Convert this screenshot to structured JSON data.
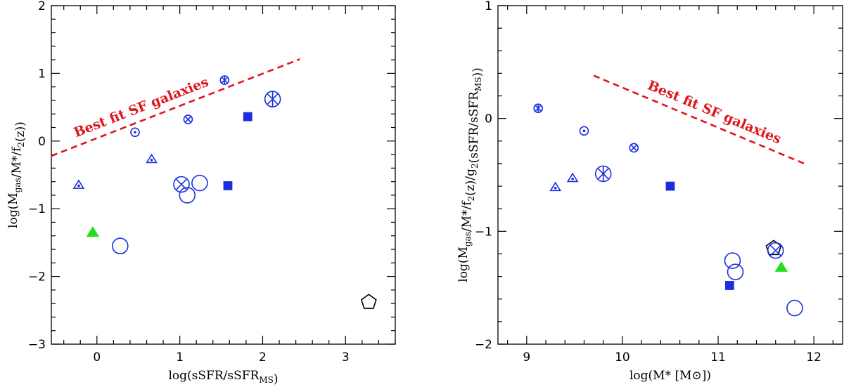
{
  "chart_data": [
    {
      "type": "scatter",
      "xlabel": "log(sSFR/sSFR_MS)",
      "ylabel": "log(M_gas/M*/f2(z))",
      "xlim": [
        -0.55,
        3.6
      ],
      "ylim": [
        -3,
        2
      ],
      "xticks": [
        0,
        1,
        2,
        3
      ],
      "xtick_labels": [
        "0",
        "1",
        "2",
        "3"
      ],
      "yticks": [
        -3,
        -2,
        -1,
        0,
        1,
        2
      ],
      "ytick_labels": [
        "−3",
        "−2",
        "−1",
        "0",
        "1",
        "2"
      ],
      "fit_line": {
        "label": "Best fit SF galaxies",
        "x": [
          -0.55,
          2.45
        ],
        "y": [
          -0.22,
          1.21
        ],
        "color": "#e0141b",
        "style": "dashed"
      },
      "points": [
        {
          "x": -0.22,
          "y": -0.65,
          "marker": "triangle-dot",
          "color": "#1a2ee0",
          "size": "small"
        },
        {
          "x": -0.05,
          "y": -1.35,
          "marker": "triangle-filled",
          "color": "#22e01a",
          "size": "medium"
        },
        {
          "x": 0.28,
          "y": -1.55,
          "marker": "circle",
          "color": "#1a2ee0",
          "size": "large"
        },
        {
          "x": 0.46,
          "y": 0.13,
          "marker": "circle-dot",
          "color": "#1a2ee0",
          "size": "small"
        },
        {
          "x": 0.66,
          "y": -0.27,
          "marker": "triangle-dot",
          "color": "#1a2ee0",
          "size": "small"
        },
        {
          "x": 1.02,
          "y": -0.64,
          "marker": "circle-cross",
          "color": "#1a2ee0",
          "size": "large"
        },
        {
          "x": 1.09,
          "y": -0.8,
          "marker": "circle",
          "color": "#1a2ee0",
          "size": "large"
        },
        {
          "x": 1.1,
          "y": 0.32,
          "marker": "circle-cross",
          "color": "#1a2ee0",
          "size": "small"
        },
        {
          "x": 1.24,
          "y": -0.62,
          "marker": "circle",
          "color": "#1a2ee0",
          "size": "large"
        },
        {
          "x": 1.54,
          "y": 0.9,
          "marker": "circle-asterisk",
          "color": "#1a2ee0",
          "size": "small"
        },
        {
          "x": 1.58,
          "y": -0.66,
          "marker": "square-filled",
          "color": "#1a2ee0",
          "size": "medium"
        },
        {
          "x": 1.82,
          "y": 0.36,
          "marker": "square-filled",
          "color": "#1a2ee0",
          "size": "medium"
        },
        {
          "x": 2.12,
          "y": 0.62,
          "marker": "circle-asterisk",
          "color": "#1a2ee0",
          "size": "large"
        },
        {
          "x": 3.28,
          "y": -2.38,
          "marker": "pentagon",
          "color": "#000000",
          "size": "large"
        }
      ]
    },
    {
      "type": "scatter",
      "xlabel": "log(M* [M⊙])",
      "ylabel": "log(M_gas/M*/f2(z)/g2(sSFR/sSFR_MS))",
      "xlim": [
        8.7,
        12.3
      ],
      "ylim": [
        -2,
        1
      ],
      "xticks": [
        9,
        10,
        11,
        12
      ],
      "xtick_labels": [
        "9",
        "10",
        "11",
        "12"
      ],
      "yticks": [
        -2,
        -1,
        0,
        1
      ],
      "ytick_labels": [
        "−2",
        "−1",
        "0",
        "1"
      ],
      "fit_line": {
        "label": "Best fit SF galaxies",
        "x": [
          9.7,
          11.9
        ],
        "y": [
          0.38,
          -0.4
        ],
        "color": "#e0141b",
        "style": "dashed"
      },
      "points": [
        {
          "x": 9.12,
          "y": 0.09,
          "marker": "circle-asterisk",
          "color": "#1a2ee0",
          "size": "small"
        },
        {
          "x": 9.3,
          "y": -0.61,
          "marker": "triangle-dot",
          "color": "#1a2ee0",
          "size": "small"
        },
        {
          "x": 9.48,
          "y": -0.53,
          "marker": "triangle-dot",
          "color": "#1a2ee0",
          "size": "small"
        },
        {
          "x": 9.6,
          "y": -0.11,
          "marker": "circle-dot",
          "color": "#1a2ee0",
          "size": "small"
        },
        {
          "x": 9.8,
          "y": -0.49,
          "marker": "circle-asterisk",
          "color": "#1a2ee0",
          "size": "large"
        },
        {
          "x": 10.12,
          "y": -0.26,
          "marker": "circle-cross",
          "color": "#1a2ee0",
          "size": "small"
        },
        {
          "x": 10.5,
          "y": -0.6,
          "marker": "square-filled",
          "color": "#1a2ee0",
          "size": "medium"
        },
        {
          "x": 11.12,
          "y": -1.48,
          "marker": "square-filled",
          "color": "#1a2ee0",
          "size": "medium"
        },
        {
          "x": 11.15,
          "y": -1.26,
          "marker": "circle",
          "color": "#1a2ee0",
          "size": "large"
        },
        {
          "x": 11.18,
          "y": -1.36,
          "marker": "circle",
          "color": "#1a2ee0",
          "size": "large"
        },
        {
          "x": 11.58,
          "y": -1.15,
          "marker": "pentagon",
          "color": "#000000",
          "size": "large"
        },
        {
          "x": 11.6,
          "y": -1.17,
          "marker": "circle-cross",
          "color": "#1a2ee0",
          "size": "large"
        },
        {
          "x": 11.66,
          "y": -1.32,
          "marker": "triangle-filled",
          "color": "#22e01a",
          "size": "medium"
        },
        {
          "x": 11.8,
          "y": -1.68,
          "marker": "circle",
          "color": "#1a2ee0",
          "size": "large"
        }
      ]
    }
  ]
}
